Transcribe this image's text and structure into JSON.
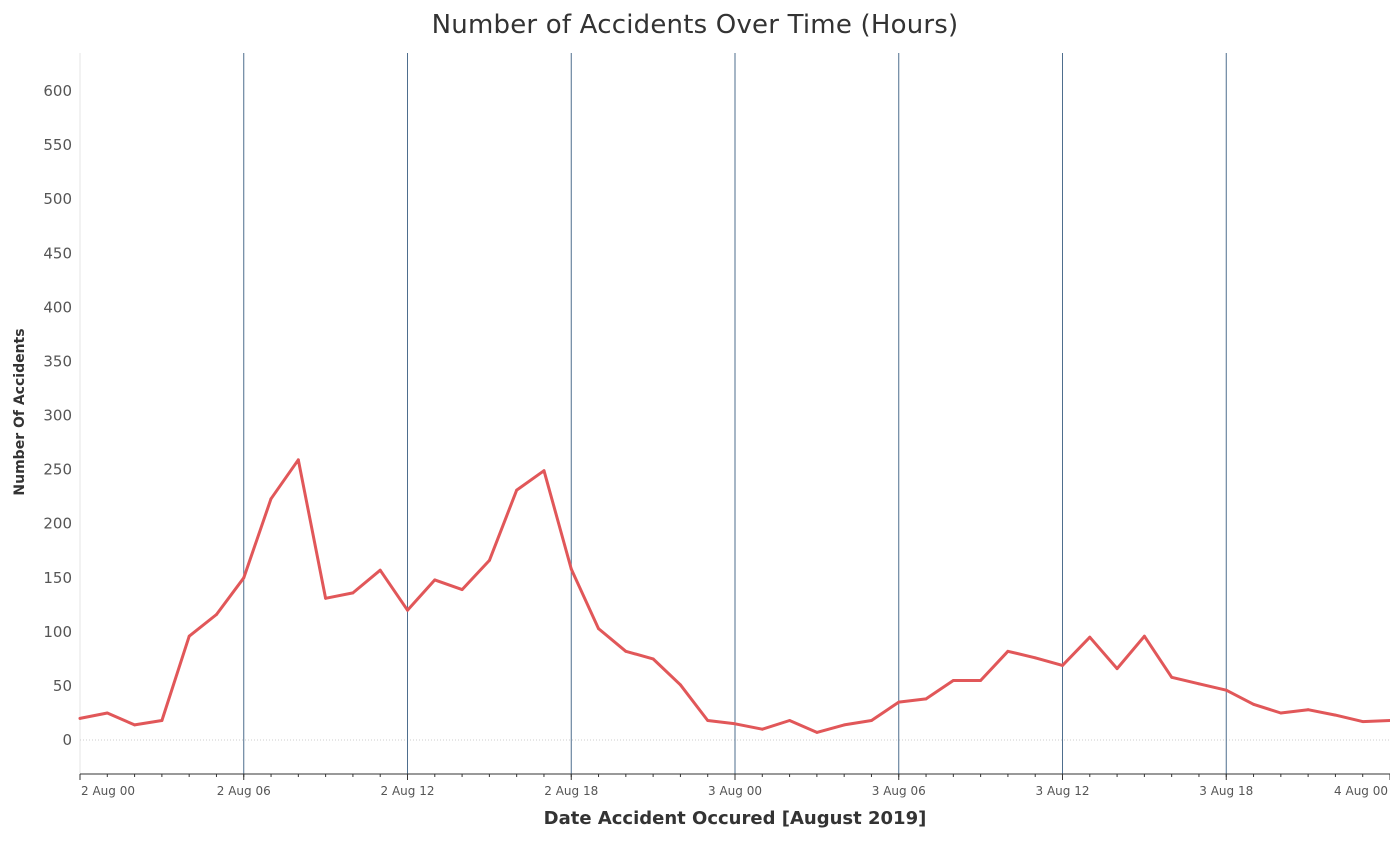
{
  "chart_data": {
    "type": "line",
    "title": "Number of Accidents Over Time (Hours)",
    "xlabel": "Date Accident Occured [August 2019]",
    "ylabel": "Number Of Accidents",
    "x_start": "2019-08-02T00:00",
    "x_end": "2019-08-04T00:00",
    "ylim": [
      -30,
      625
    ],
    "yticks": [
      0,
      50,
      100,
      150,
      200,
      250,
      300,
      350,
      400,
      450,
      500,
      550,
      600
    ],
    "xticks": [
      {
        "x": "2019-08-02T00:00",
        "label": "2 Aug 00"
      },
      {
        "x": "2019-08-02T06:00",
        "label": "2 Aug 06"
      },
      {
        "x": "2019-08-02T12:00",
        "label": "2 Aug 12"
      },
      {
        "x": "2019-08-02T18:00",
        "label": "2 Aug 18"
      },
      {
        "x": "2019-08-03T00:00",
        "label": "3 Aug 00"
      },
      {
        "x": "2019-08-03T06:00",
        "label": "3 Aug 06"
      },
      {
        "x": "2019-08-03T12:00",
        "label": "3 Aug 12"
      },
      {
        "x": "2019-08-03T18:00",
        "label": "3 Aug 18"
      },
      {
        "x": "2019-08-04T00:00",
        "label": "4 Aug 00"
      }
    ],
    "vertical_grid_at": [
      "2019-08-02T06:00",
      "2019-08-02T12:00",
      "2019-08-02T18:00",
      "2019-08-03T00:00",
      "2019-08-03T06:00",
      "2019-08-03T12:00",
      "2019-08-03T18:00"
    ],
    "grid": {
      "horizontal": false,
      "vertical": true,
      "zero_line": true
    },
    "colors": {
      "line": "#e15759",
      "grid": "#4e6e8e",
      "axis": "#333333",
      "zero_line": "#cccccc"
    },
    "series": [
      {
        "x": [
          "2019-08-02T00:00",
          "2019-08-02T01:00",
          "2019-08-02T02:00",
          "2019-08-02T03:00",
          "2019-08-02T04:00",
          "2019-08-02T05:00",
          "2019-08-02T06:00",
          "2019-08-02T07:00",
          "2019-08-02T08:00",
          "2019-08-02T09:00",
          "2019-08-02T10:00",
          "2019-08-02T11:00",
          "2019-08-02T12:00",
          "2019-08-02T13:00",
          "2019-08-02T14:00",
          "2019-08-02T15:00",
          "2019-08-02T16:00",
          "2019-08-02T17:00",
          "2019-08-02T18:00",
          "2019-08-02T19:00",
          "2019-08-02T20:00",
          "2019-08-02T21:00",
          "2019-08-02T22:00",
          "2019-08-02T23:00",
          "2019-08-03T00:00",
          "2019-08-03T01:00",
          "2019-08-03T02:00",
          "2019-08-03T03:00",
          "2019-08-03T04:00",
          "2019-08-03T05:00",
          "2019-08-03T06:00",
          "2019-08-03T07:00",
          "2019-08-03T08:00",
          "2019-08-03T09:00",
          "2019-08-03T10:00",
          "2019-08-03T11:00",
          "2019-08-03T12:00",
          "2019-08-03T13:00",
          "2019-08-03T14:00",
          "2019-08-03T15:00",
          "2019-08-03T16:00",
          "2019-08-03T17:00",
          "2019-08-03T18:00",
          "2019-08-03T19:00",
          "2019-08-03T20:00",
          "2019-08-03T21:00",
          "2019-08-03T22:00",
          "2019-08-03T23:00",
          "2019-08-04T00:00"
        ],
        "values": [
          20,
          25,
          14,
          18,
          96,
          116,
          150,
          223,
          259,
          131,
          136,
          157,
          120,
          148,
          139,
          166,
          231,
          249,
          158,
          103,
          82,
          75,
          51,
          18,
          15,
          10,
          18,
          7,
          14,
          18,
          35,
          38,
          55,
          55,
          82,
          76,
          69,
          95,
          66,
          96,
          58,
          52,
          46,
          33,
          25,
          28,
          23,
          17,
          18
        ]
      }
    ]
  }
}
